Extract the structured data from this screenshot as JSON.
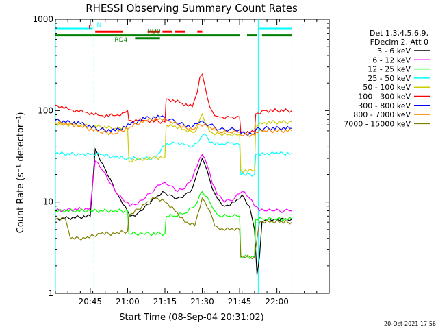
{
  "chart_data": {
    "type": "line",
    "title": "RHESSI Observing Summary Count Rates",
    "xlabel": "Start Time (08-Sep-04 20:31:02)",
    "ylabel": "Count Rate (s⁻¹ detector⁻¹)",
    "yscale": "log",
    "ylim": [
      1,
      1000
    ],
    "xlim_min": [
      0,
      110
    ],
    "y_ticks": [
      {
        "label": "1",
        "value": 1
      },
      {
        "label": "10",
        "value": 10
      },
      {
        "label": "100",
        "value": 100
      },
      {
        "label": "1000",
        "value": 1000
      }
    ],
    "x_ticks": [
      {
        "label": "20:45",
        "value": 14
      },
      {
        "label": "21:00",
        "value": 29
      },
      {
        "label": "21:15",
        "value": 44
      },
      {
        "label": "21:30",
        "value": 59
      },
      {
        "label": "21:45",
        "value": 74
      },
      {
        "label": "22:00",
        "value": 89
      }
    ],
    "vlines": [
      0,
      15.5,
      81.5,
      95
    ],
    "legend": {
      "header": [
        "Det 1,3,4,5,6,9,",
        "FDecim 2, Att 0"
      ],
      "position": "right"
    },
    "timestamp": "20-Oct-2021 17:56",
    "flags": [
      {
        "label": "N",
        "color": "#00ffff",
        "segments": [
          [
            0,
            15
          ],
          [
            82,
            95
          ]
        ],
        "y": 2.5
      },
      {
        "label": "F",
        "color": "#ff0000",
        "segments": [
          [
            16,
            27
          ]
        ],
        "y": 1.8,
        "dashed_segments": [
          [
            37,
            42
          ],
          [
            43,
            47
          ],
          [
            48,
            52
          ],
          [
            57,
            59
          ]
        ]
      },
      {
        "label": "RD0",
        "color": "#008000",
        "segments": [
          [
            0,
            74
          ],
          [
            77,
            81
          ],
          [
            83,
            95
          ]
        ],
        "y": 0.9
      },
      {
        "label": "RD4",
        "color": "#008000",
        "segments": [
          [
            32,
            42
          ]
        ],
        "y": 0.2
      }
    ],
    "series": [
      {
        "name": "3 - 6 keV",
        "color": "#000000",
        "x": [
          0,
          14,
          16,
          19,
          22,
          25,
          28,
          30,
          33,
          36,
          40,
          43,
          46,
          49,
          52,
          55,
          57,
          59,
          61,
          63,
          65,
          68,
          72,
          75,
          78,
          80,
          81,
          82,
          83,
          85,
          88,
          92,
          95
        ],
        "y": [
          6.5,
          7,
          38,
          26,
          18,
          12,
          9,
          7,
          7.5,
          9,
          11,
          13,
          12,
          11,
          12,
          14,
          21,
          30,
          22,
          14,
          11,
          9,
          10,
          12,
          9,
          5,
          1.6,
          2.5,
          6,
          6.5,
          6.5,
          6.5,
          6.5
        ]
      },
      {
        "name": "6 - 12 keV",
        "color": "#ff00ff",
        "x": [
          0,
          14,
          16,
          19,
          22,
          25,
          28,
          30,
          33,
          36,
          40,
          43,
          46,
          49,
          52,
          55,
          57,
          59,
          61,
          63,
          65,
          68,
          72,
          75,
          78,
          80,
          82,
          85,
          88,
          92,
          95
        ],
        "y": [
          8,
          8.5,
          28,
          22,
          16,
          12,
          10,
          9,
          9.5,
          11,
          14,
          16,
          15,
          13,
          14,
          18,
          25,
          33,
          25,
          16,
          12,
          10,
          11,
          13,
          11,
          9,
          8,
          8,
          8,
          8,
          8
        ]
      },
      {
        "name": "12 - 25 keV",
        "color": "#00ff00",
        "x": [
          0,
          14,
          24,
          29,
          29.5,
          35,
          44,
          44.5,
          48,
          52,
          56,
          59,
          62,
          64,
          66,
          70,
          74,
          74.5,
          80,
          80.5,
          84,
          88,
          95
        ],
        "y": [
          8,
          8,
          8,
          8,
          4.5,
          4.5,
          4.5,
          7,
          7,
          7.5,
          9,
          13,
          10,
          8,
          7,
          7,
          7,
          2.5,
          2.5,
          6.5,
          6.5,
          6.5,
          6.5
        ]
      },
      {
        "name": "25 - 50 keV",
        "color": "#00ffff",
        "x": [
          0,
          10,
          14,
          18,
          24,
          29,
          34,
          40,
          44,
          48,
          52,
          55,
          58,
          60,
          62,
          66,
          70,
          74,
          74.5,
          80,
          80.5,
          84,
          88,
          95
        ],
        "y": [
          34,
          33,
          33,
          33,
          31,
          30,
          30,
          30,
          42,
          44,
          42,
          40,
          48,
          56,
          45,
          42,
          44,
          42,
          20,
          20,
          33,
          33,
          34,
          34
        ]
      },
      {
        "name": "50 - 100 keV",
        "color": "#cccc00",
        "x": [
          0,
          14,
          24,
          29,
          29.5,
          36,
          44,
          44.5,
          48,
          52,
          56,
          59,
          61,
          63,
          66,
          70,
          74,
          74.5,
          80,
          80.5,
          84,
          95
        ],
        "y": [
          72,
          68,
          64,
          64,
          28,
          30,
          31,
          70,
          68,
          62,
          58,
          92,
          68,
          57,
          56,
          55,
          55,
          22,
          22,
          70,
          74,
          75
        ]
      },
      {
        "name": "100 - 300 keV",
        "color": "#ff0000",
        "x": [
          0,
          6,
          12,
          18,
          24,
          28,
          29,
          29.5,
          36,
          44,
          44.5,
          50,
          55,
          57,
          58,
          59,
          60,
          61,
          62,
          64,
          66,
          70,
          74,
          74.5,
          80,
          80.5,
          84,
          95
        ],
        "y": [
          115,
          102,
          96,
          88,
          88,
          95,
          100,
          78,
          78,
          75,
          135,
          122,
          110,
          160,
          230,
          250,
          190,
          140,
          110,
          88,
          85,
          85,
          85,
          58,
          58,
          92,
          100,
          100
        ]
      },
      {
        "name": "300 - 800 keV",
        "color": "#0000ff",
        "x": [
          0,
          10,
          18,
          24,
          30,
          36,
          42,
          46,
          50,
          55,
          58,
          62,
          66,
          70,
          74,
          74.5,
          80,
          80.5,
          84,
          95
        ],
        "y": [
          78,
          72,
          62,
          60,
          70,
          82,
          85,
          80,
          72,
          66,
          75,
          70,
          62,
          62,
          62,
          56,
          56,
          62,
          64,
          64
        ]
      },
      {
        "name": "800 - 7000 keV",
        "color": "#ff8800",
        "x": [
          0,
          10,
          18,
          24,
          30,
          36,
          42,
          46,
          50,
          55,
          58,
          62,
          66,
          70,
          74,
          74.5,
          80,
          80.5,
          84,
          95
        ],
        "y": [
          74,
          68,
          58,
          56,
          66,
          78,
          82,
          76,
          68,
          62,
          70,
          66,
          58,
          58,
          58,
          54,
          54,
          58,
          60,
          60
        ]
      },
      {
        "name": "7000 - 15000 keV",
        "color": "#808000",
        "x": [
          0,
          4,
          6,
          12,
          18,
          24,
          29,
          29.5,
          36,
          40,
          44,
          48,
          52,
          56,
          59,
          62,
          64,
          66,
          70,
          74,
          74.5,
          80,
          82,
          86,
          90,
          95
        ],
        "y": [
          6.5,
          6.5,
          4,
          4,
          4.5,
          4.5,
          4.8,
          7,
          9.5,
          11,
          10,
          8,
          6,
          5.5,
          11,
          8,
          5.5,
          5,
          5,
          5,
          2.5,
          2.5,
          6,
          6,
          6,
          6
        ]
      }
    ]
  }
}
